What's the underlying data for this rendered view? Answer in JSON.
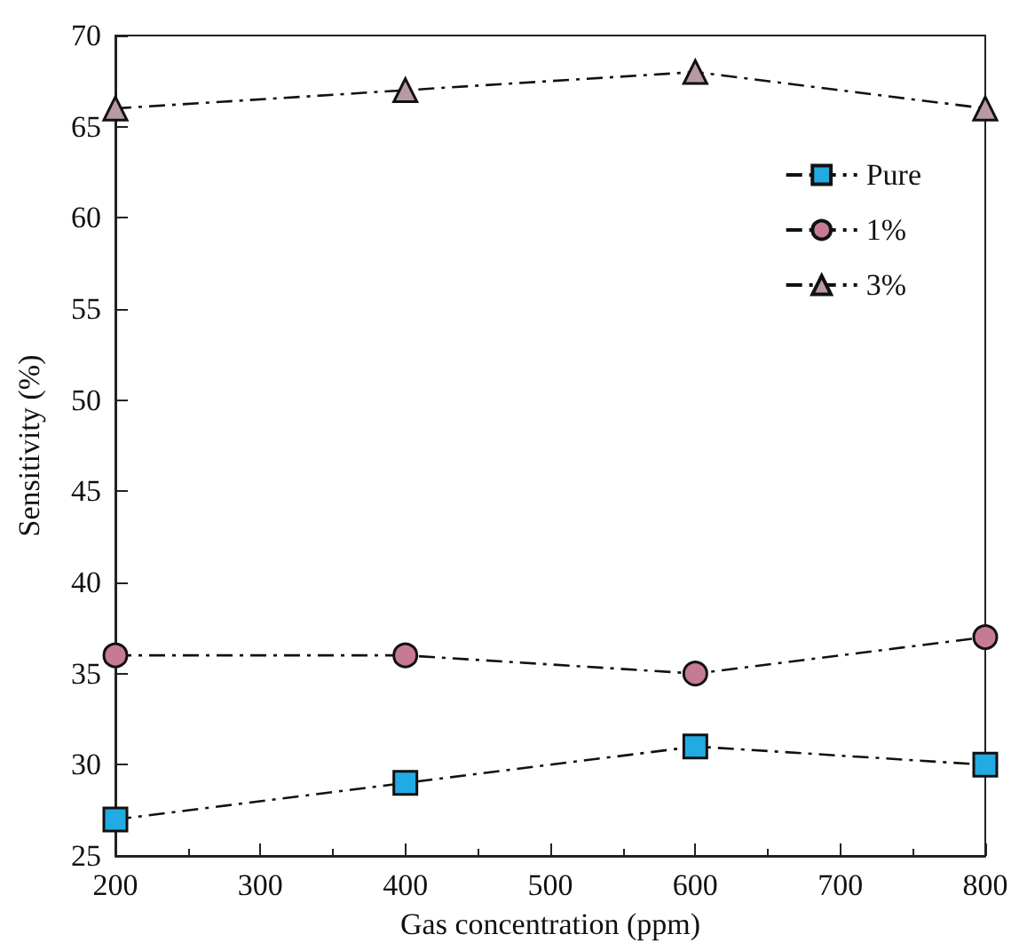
{
  "chart_data": {
    "type": "line",
    "xlabel": "Gas concentration (ppm)",
    "ylabel": "Sensitivity (%)",
    "x": [
      200,
      400,
      600,
      800
    ],
    "series": [
      {
        "name": "Pure",
        "color": "#22abe2",
        "marker": "square",
        "values": [
          27,
          29,
          31,
          30
        ]
      },
      {
        "name": "1%",
        "color": "#c77b93",
        "marker": "circle",
        "values": [
          36,
          36,
          35,
          37
        ]
      },
      {
        "name": "3%",
        "color": "#b79aa6",
        "marker": "triangle",
        "values": [
          66,
          67,
          68,
          66
        ]
      }
    ],
    "line_style": "dashed",
    "legend": "top right",
    "grid": false,
    "xlim": [
      200,
      800
    ],
    "xticks": [
      200,
      300,
      400,
      500,
      600,
      700,
      800
    ],
    "ylim": [
      25,
      70
    ],
    "yticks": [
      25,
      30,
      35,
      40,
      45,
      50,
      55,
      60,
      65,
      70
    ]
  }
}
